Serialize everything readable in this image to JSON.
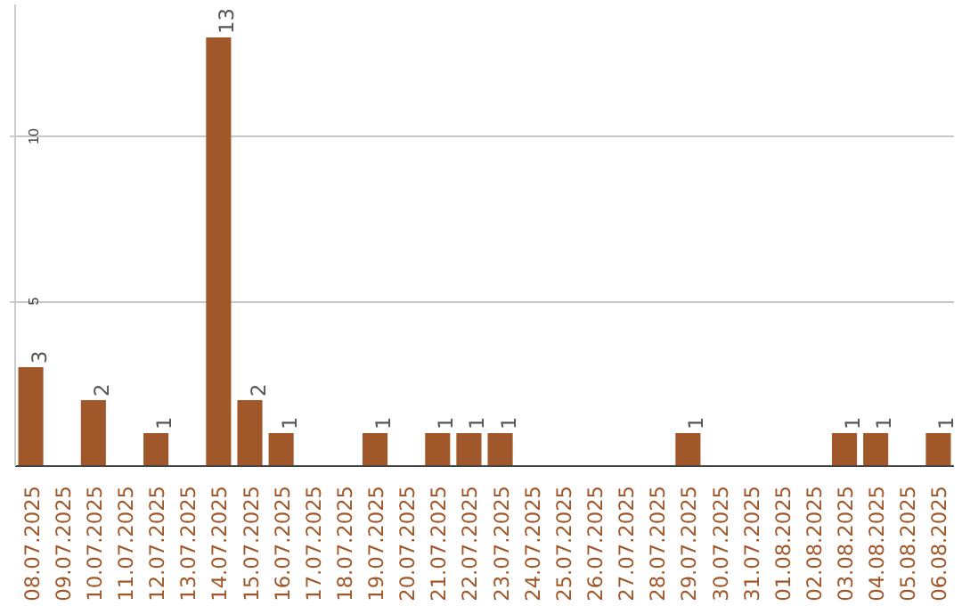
{
  "chart_data": {
    "type": "bar",
    "categories": [
      "08.07.2025",
      "09.07.2025",
      "10.07.2025",
      "11.07.2025",
      "12.07.2025",
      "13.07.2025",
      "14.07.2025",
      "15.07.2025",
      "16.07.2025",
      "17.07.2025",
      "18.07.2025",
      "19.07.2025",
      "20.07.2025",
      "21.07.2025",
      "22.07.2025",
      "23.07.2025",
      "24.07.2025",
      "25.07.2025",
      "26.07.2025",
      "27.07.2025",
      "28.07.2025",
      "29.07.2025",
      "30.07.2025",
      "31.07.2025",
      "01.08.2025",
      "02.08.2025",
      "03.08.2025",
      "04.08.2025",
      "05.08.2025",
      "06.08.2025"
    ],
    "values": [
      3,
      0,
      2,
      0,
      1,
      0,
      13,
      2,
      1,
      0,
      0,
      1,
      0,
      1,
      1,
      1,
      0,
      0,
      0,
      0,
      0,
      1,
      0,
      0,
      0,
      0,
      1,
      1,
      0,
      1
    ],
    "value_labels": [
      "3",
      null,
      "2",
      null,
      "1",
      null,
      "13",
      "2",
      "1",
      null,
      null,
      "1",
      null,
      "1",
      "1",
      "1",
      null,
      null,
      null,
      null,
      null,
      "1",
      null,
      null,
      null,
      null,
      "1",
      "1",
      null,
      "1"
    ],
    "color": "#a0582a",
    "ylim": [
      0,
      14
    ],
    "yticks": [
      5,
      10
    ],
    "grid": "y"
  }
}
